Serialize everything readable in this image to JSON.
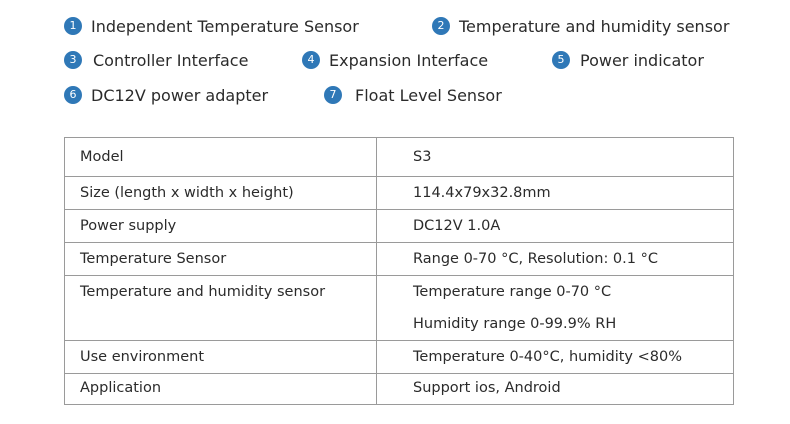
{
  "legend": [
    {
      "num": "1",
      "label": "Independent Temperature Sensor"
    },
    {
      "num": "2",
      "label": "Temperature and humidity sensor"
    },
    {
      "num": "3",
      "label": "Controller Interface"
    },
    {
      "num": "4",
      "label": "Expansion Interface"
    },
    {
      "num": "5",
      "label": "Power indicator"
    },
    {
      "num": "6",
      "label": "DC12V power adapter"
    },
    {
      "num": "7",
      "label": "Float Level Sensor"
    }
  ],
  "specs": [
    {
      "label": "Model",
      "values": [
        "S3"
      ]
    },
    {
      "label": "Size (length x width x height)",
      "values": [
        "114.4x79x32.8mm"
      ]
    },
    {
      "label": "Power supply",
      "values": [
        "DC12V 1.0A"
      ]
    },
    {
      "label": "Temperature Sensor",
      "values": [
        "Range 0-70 °C, Resolution: 0.1 °C"
      ]
    },
    {
      "label": "Temperature and humidity sensor",
      "values": [
        "Temperature range 0-70 °C",
        "Humidity range 0-99.9% RH"
      ]
    },
    {
      "label": "Use environment",
      "values": [
        "Temperature 0-40°C, humidity <80%"
      ]
    },
    {
      "label": "Application",
      "values": [
        "Support ios, Android"
      ]
    }
  ],
  "colors": {
    "badge": "#2f78b7",
    "text": "#2b2b2b",
    "border": "#9a9a9a"
  }
}
